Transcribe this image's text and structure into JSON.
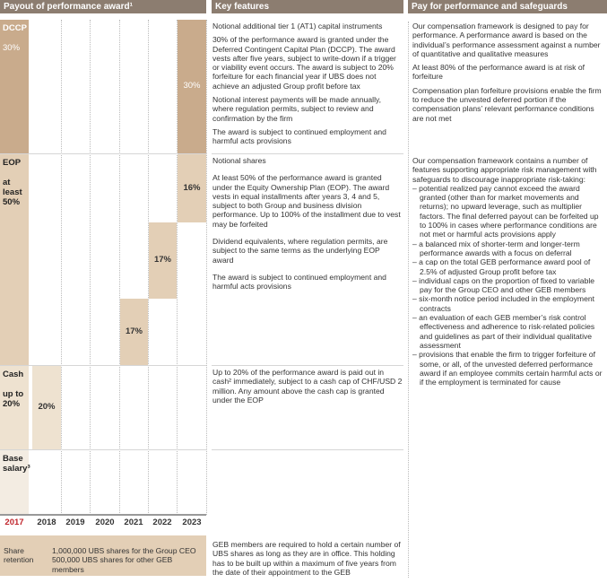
{
  "headers": {
    "payout": "Payout of performance award¹",
    "features": "Key features",
    "safeguards": "Pay for performance and safeguards"
  },
  "rows": {
    "dccp": {
      "label": "DCCP",
      "pct": "30%",
      "bar": "30%"
    },
    "eop": {
      "label": "EOP",
      "pct": "at least 50%",
      "bars": [
        "16%",
        "17%",
        "17%"
      ]
    },
    "cash": {
      "label": "Cash",
      "pct": "up to 20%",
      "bar": "20%"
    },
    "base": {
      "label": "Base salary³"
    }
  },
  "years": [
    "2017",
    "2018",
    "2019",
    "2020",
    "2021",
    "2022",
    "2023"
  ],
  "colors": {
    "header": "#8c7d70",
    "dccp": "#c9ab8c",
    "eop": "#e3cfb6",
    "cash": "#eee2d0",
    "first_year": "#c0262d"
  },
  "features": {
    "dccp": [
      "Notional additional tier 1 (AT1) capital instruments",
      "30% of the performance award is granted under the Deferred Contingent Capital Plan (DCCP). The award vests after five years, subject to write-down if a trigger or viability event occurs. The award is subject to 20% forfeiture for each financial year if UBS does not achieve an adjusted Group profit before tax",
      "Notional interest payments will be made annually, where regulation permits, subject to review and confirmation by the firm",
      "The award is subject to continued employment and harmful acts provisions"
    ],
    "eop": [
      "Notional shares",
      "At least 50% of the performance award is granted under the Equity Ownership Plan (EOP). The award vests in equal installments after years 3, 4 and 5, subject to both Group and business division performance. Up to 100% of the installment due to vest may be forfeited",
      "Dividend equivalents, where regulation permits, are subject to the same terms as the underlying EOP award",
      "The award is subject to continued employment and harmful acts provisions"
    ],
    "cash": "Up to 20% of the performance award is paid out in cash² immediately, subject to a cash cap of CHF/USD 2 million. Any amount above the cash cap is granted under the EOP",
    "retention": "GEB members are required to hold a certain number of UBS shares as long as they are in office. This holding has to be built up within a maximum of five years from the date of their appointment to the GEB"
  },
  "safeguards": {
    "top": [
      "Our compensation framework is designed to pay for performance. A performance award is based on the individual’s performance assessment against a number of quantitative and qualitative measures",
      "At least 80% of the performance award is at risk of forfeiture",
      "Compensation plan forfeiture provisions enable the firm to reduce the unvested deferred portion if the compensation plans’ relevant performance conditions are not met"
    ],
    "intro": "Our compensation framework contains a number of features supporting appropriate risk management with safeguards to discourage inappropriate risk-taking:",
    "items": [
      "– potential realized pay cannot exceed the award granted (other than for market movements and returns); no upward leverage, such as multiplier factors. The final deferred payout can be forfeited up to 100% in cases where performance conditions are not met or harmful acts provisions apply",
      "– a balanced mix of shorter-term and longer-term performance awards with a focus on deferral",
      "– a cap on the total GEB performance award pool of 2.5% of adjusted Group profit before tax",
      "– individual caps on the proportion of fixed to variable pay for the Group CEO and other GEB members",
      "– six-month notice period included in the employment contracts",
      "– an evaluation of each GEB member’s risk control effectiveness and adherence to risk-related policies and guidelines as part of their individual qualitative assessment",
      "– provisions that enable the firm to trigger forfeiture of some, or all, of the unvested deferred performance award if an employee commits certain harmful acts or if the employment is terminated for cause"
    ]
  },
  "retention": {
    "label": "Share retention",
    "ceo": "1,000,000 UBS shares for the Group CEO",
    "geb": "500,000 UBS shares for other GEB members"
  }
}
